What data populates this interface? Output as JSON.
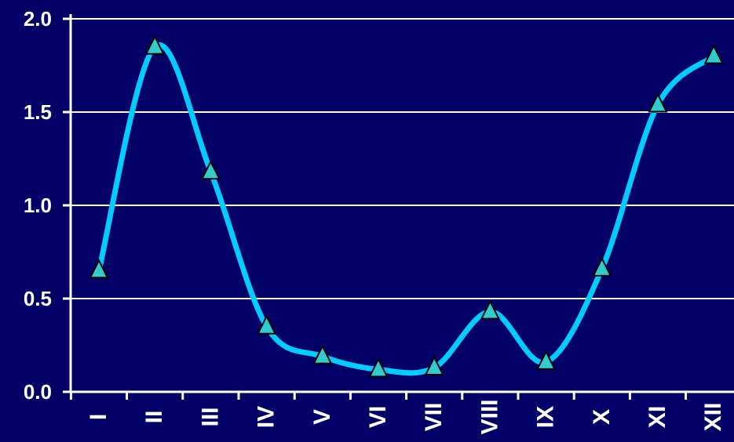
{
  "chart_data": {
    "type": "line",
    "categories": [
      "I",
      "II",
      "III",
      "IV",
      "V",
      "VI",
      "VII",
      "VIII",
      "IX",
      "X",
      "XI",
      "XII"
    ],
    "series": [
      {
        "values": [
          0.65,
          1.85,
          1.18,
          0.35,
          0.19,
          0.12,
          0.13,
          0.43,
          0.16,
          0.66,
          1.54,
          1.8
        ]
      }
    ],
    "y_ticks": [
      "0.0",
      "0.5",
      "1.0",
      "1.5",
      "2.0"
    ],
    "ylim": [
      0,
      2.0
    ],
    "grid": "horizontal",
    "colors": {
      "background": "#000066",
      "line": "#00ccff",
      "marker": "#33cccc",
      "grid": "#ffffff",
      "text": "#ffffff"
    }
  }
}
